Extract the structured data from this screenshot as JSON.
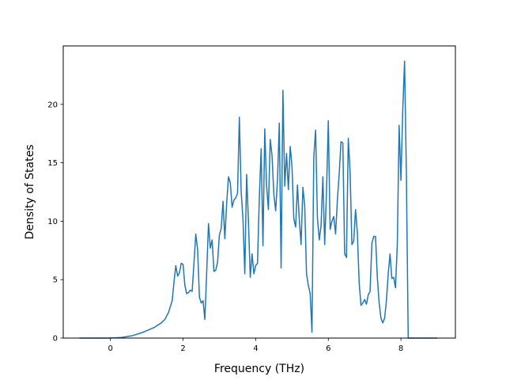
{
  "chart_data": {
    "type": "line",
    "title": "",
    "xlabel": "Frequency (THz)",
    "ylabel": "Density of States",
    "xlim": [
      -1.3,
      9.5
    ],
    "ylim": [
      0,
      25
    ],
    "x_ticks": [
      0,
      2,
      4,
      6,
      8
    ],
    "x_tick_labels": [
      "0",
      "2",
      "4",
      "6",
      "8"
    ],
    "y_ticks": [
      0,
      5,
      10,
      15,
      20
    ],
    "y_tick_labels": [
      "0",
      "5",
      "10",
      "15",
      "20"
    ],
    "grid": false,
    "legend": "none",
    "line_color": "#1f77b4",
    "series": [
      {
        "x": [
          -0.85,
          0.0,
          0.3,
          0.6,
          0.9,
          1.2,
          1.4,
          1.5,
          1.6,
          1.7,
          1.75,
          1.8,
          1.85,
          1.9,
          1.95,
          2.0,
          2.05,
          2.1,
          2.15,
          2.2,
          2.25,
          2.3,
          2.35,
          2.4,
          2.45,
          2.5,
          2.55,
          2.6,
          2.65,
          2.7,
          2.75,
          2.8,
          2.85,
          2.9,
          2.95,
          3.0,
          3.05,
          3.1,
          3.15,
          3.2,
          3.25,
          3.3,
          3.35,
          3.4,
          3.45,
          3.5,
          3.55,
          3.6,
          3.65,
          3.7,
          3.75,
          3.8,
          3.85,
          3.9,
          3.95,
          4.0,
          4.05,
          4.1,
          4.15,
          4.2,
          4.25,
          4.3,
          4.35,
          4.4,
          4.45,
          4.5,
          4.55,
          4.6,
          4.65,
          4.7,
          4.75,
          4.8,
          4.85,
          4.9,
          4.95,
          5.0,
          5.05,
          5.1,
          5.15,
          5.2,
          5.25,
          5.3,
          5.35,
          5.4,
          5.45,
          5.5,
          5.55,
          5.6,
          5.65,
          5.7,
          5.75,
          5.8,
          5.85,
          5.9,
          5.95,
          6.0,
          6.05,
          6.1,
          6.15,
          6.2,
          6.25,
          6.3,
          6.35,
          6.4,
          6.45,
          6.5,
          6.55,
          6.6,
          6.65,
          6.7,
          6.75,
          6.8,
          6.85,
          6.9,
          6.95,
          7.0,
          7.05,
          7.1,
          7.15,
          7.2,
          7.25,
          7.3,
          7.35,
          7.4,
          7.45,
          7.5,
          7.55,
          7.6,
          7.65,
          7.7,
          7.75,
          7.8,
          7.85,
          7.9,
          7.95,
          8.0,
          8.05,
          8.1,
          8.15,
          8.2,
          8.3,
          9.0
        ],
        "y": [
          0,
          0,
          0.05,
          0.2,
          0.5,
          0.9,
          1.3,
          1.6,
          2.2,
          3.2,
          4.8,
          6.2,
          5.3,
          5.6,
          6.4,
          6.3,
          4.5,
          3.8,
          3.9,
          4.1,
          4.0,
          6.4,
          8.9,
          7.6,
          3.5,
          3.0,
          3.2,
          1.6,
          5.6,
          9.8,
          7.7,
          8.4,
          5.7,
          5.8,
          6.5,
          8.8,
          9.4,
          11.7,
          8.5,
          11.5,
          13.8,
          13.3,
          11.2,
          11.8,
          12.0,
          12.4,
          18.9,
          12.5,
          10.2,
          5.5,
          14.0,
          10.0,
          5.2,
          7.2,
          5.5,
          6.2,
          6.4,
          12.0,
          16.2,
          7.9,
          17.9,
          13.0,
          11.0,
          17.0,
          15.6,
          12.3,
          10.9,
          13.5,
          18.4,
          6.0,
          21.2,
          13.0,
          15.8,
          12.7,
          16.4,
          14.7,
          10.2,
          9.5,
          13.1,
          10.2,
          8.0,
          12.9,
          11.3,
          5.5,
          4.5,
          3.8,
          0.5,
          15.5,
          17.8,
          10.3,
          8.4,
          9.6,
          13.8,
          8.0,
          12.5,
          18.6,
          9.3,
          10.0,
          10.4,
          8.9,
          11.8,
          14.1,
          16.8,
          16.7,
          7.2,
          6.9,
          17.1,
          14.2,
          8.0,
          8.3,
          11.0,
          9.0,
          4.7,
          2.8,
          3.0,
          3.3,
          2.9,
          3.7,
          4.0,
          8.1,
          8.7,
          8.7,
          5.2,
          3.0,
          1.7,
          1.3,
          1.7,
          3.2,
          5.5,
          7.2,
          5.1,
          5.2,
          4.3,
          8.0,
          18.2,
          13.5,
          19.5,
          23.7,
          14.0,
          0,
          0,
          0
        ]
      }
    ]
  }
}
